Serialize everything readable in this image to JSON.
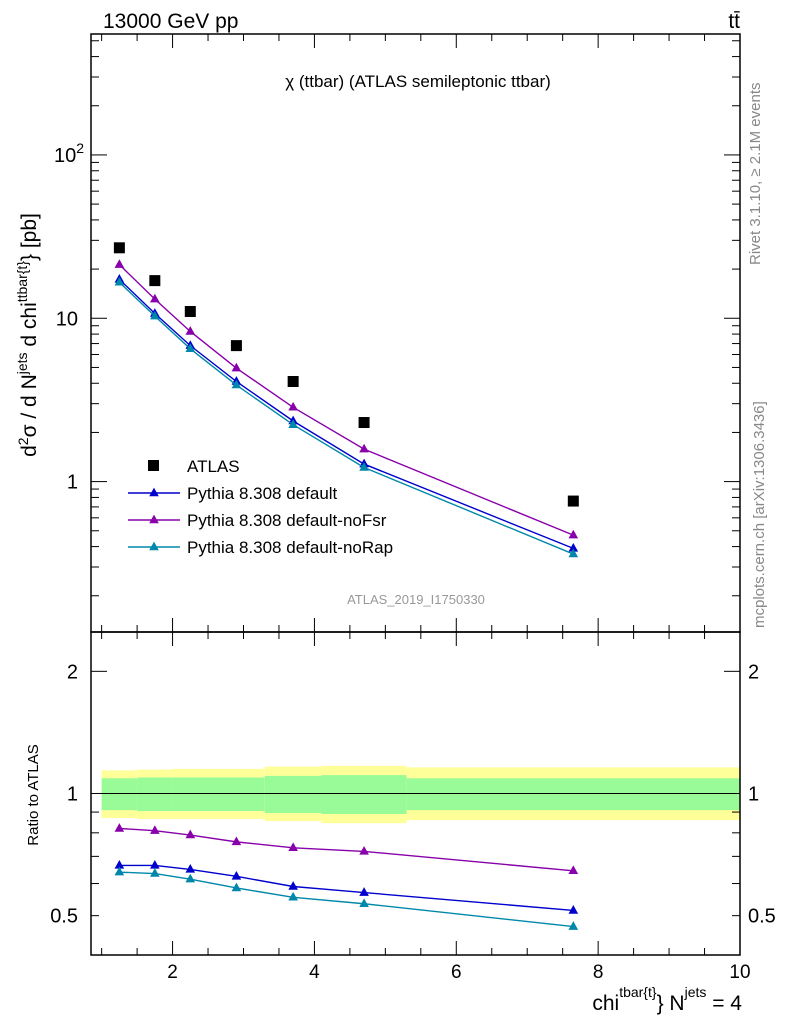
{
  "header": {
    "left": "13000 GeV pp",
    "right": "tt̄"
  },
  "side": {
    "rivet": "Rivet 3.1.10, ≥ 2.1M events",
    "mcplots": "mcplots.cern.ch [arXiv:1306.3436]"
  },
  "chart_data": [
    {
      "type": "scatter",
      "title": "χ (ttbar) (ATLAS semileptonic ttbar)",
      "ylabel": "d²σ / d N^jets d chi^{ttbar{t}} [pb]",
      "yscale": "log",
      "xlim": [
        0.85,
        10
      ],
      "ylim": [
        0.12,
        550
      ],
      "ytick_labels": [
        "1",
        "10",
        "10²"
      ],
      "watermark": "ATLAS_2019_I1750330",
      "legend_position": "bottom-left",
      "x": [
        1.25,
        1.75,
        2.25,
        2.9,
        3.7,
        4.7,
        7.65
      ],
      "series": [
        {
          "name": "ATLAS",
          "color": "#000000",
          "marker": "square",
          "values": [
            27.0,
            17.0,
            11.0,
            6.8,
            4.1,
            2.3,
            0.76
          ]
        },
        {
          "name": "Pythia 8.308 default",
          "color": "#0000cc",
          "marker": "triangle",
          "values": [
            17.3,
            10.7,
            6.8,
            4.1,
            2.35,
            1.28,
            0.39
          ]
        },
        {
          "name": "Pythia 8.308 default-noFsr",
          "color": "#8800aa",
          "marker": "triangle",
          "values": [
            21.3,
            13.1,
            8.3,
            4.95,
            2.85,
            1.58,
            0.47
          ]
        },
        {
          "name": "Pythia 8.308 default-noRap",
          "color": "#0088aa",
          "marker": "triangle",
          "values": [
            16.6,
            10.3,
            6.5,
            3.9,
            2.23,
            1.22,
            0.36
          ]
        }
      ]
    },
    {
      "type": "line",
      "ylabel": "Ratio to ATLAS",
      "xlabel": "chi^{ttbar{t}} N^jets = 4",
      "yscale": "log",
      "xlim": [
        0.85,
        10
      ],
      "ylim": [
        0.4,
        2.5
      ],
      "xtick_labels": [
        "2",
        "4",
        "6",
        "8",
        "10"
      ],
      "ytick_labels": [
        "0.5",
        "1",
        "2"
      ],
      "band_edges": [
        1.0,
        1.5,
        2.0,
        2.5,
        3.3,
        4.1,
        5.3,
        10.0
      ],
      "band_inner": [
        [
          0.91,
          1.09
        ],
        [
          0.905,
          1.095
        ],
        [
          0.905,
          1.095
        ],
        [
          0.905,
          1.095
        ],
        [
          0.895,
          1.105
        ],
        [
          0.89,
          1.11
        ],
        [
          0.91,
          1.09
        ]
      ],
      "band_outer": [
        [
          0.87,
          1.14
        ],
        [
          0.865,
          1.145
        ],
        [
          0.865,
          1.15
        ],
        [
          0.865,
          1.15
        ],
        [
          0.855,
          1.165
        ],
        [
          0.845,
          1.17
        ],
        [
          0.86,
          1.16
        ]
      ],
      "band_colors": {
        "inner": "#98fb98",
        "outer": "#ffff99"
      },
      "x": [
        1.25,
        1.75,
        2.25,
        2.9,
        3.7,
        4.7,
        7.65
      ],
      "series": [
        {
          "name": "Pythia 8.308 default",
          "color": "#0000cc",
          "values": [
            0.665,
            0.665,
            0.65,
            0.625,
            0.59,
            0.57,
            0.515
          ]
        },
        {
          "name": "Pythia 8.308 default-noFsr",
          "color": "#8800aa",
          "values": [
            0.82,
            0.81,
            0.79,
            0.76,
            0.735,
            0.72,
            0.645
          ]
        },
        {
          "name": "Pythia 8.308 default-noRap",
          "color": "#0088aa",
          "values": [
            0.64,
            0.635,
            0.615,
            0.585,
            0.555,
            0.535,
            0.47
          ]
        }
      ]
    }
  ]
}
